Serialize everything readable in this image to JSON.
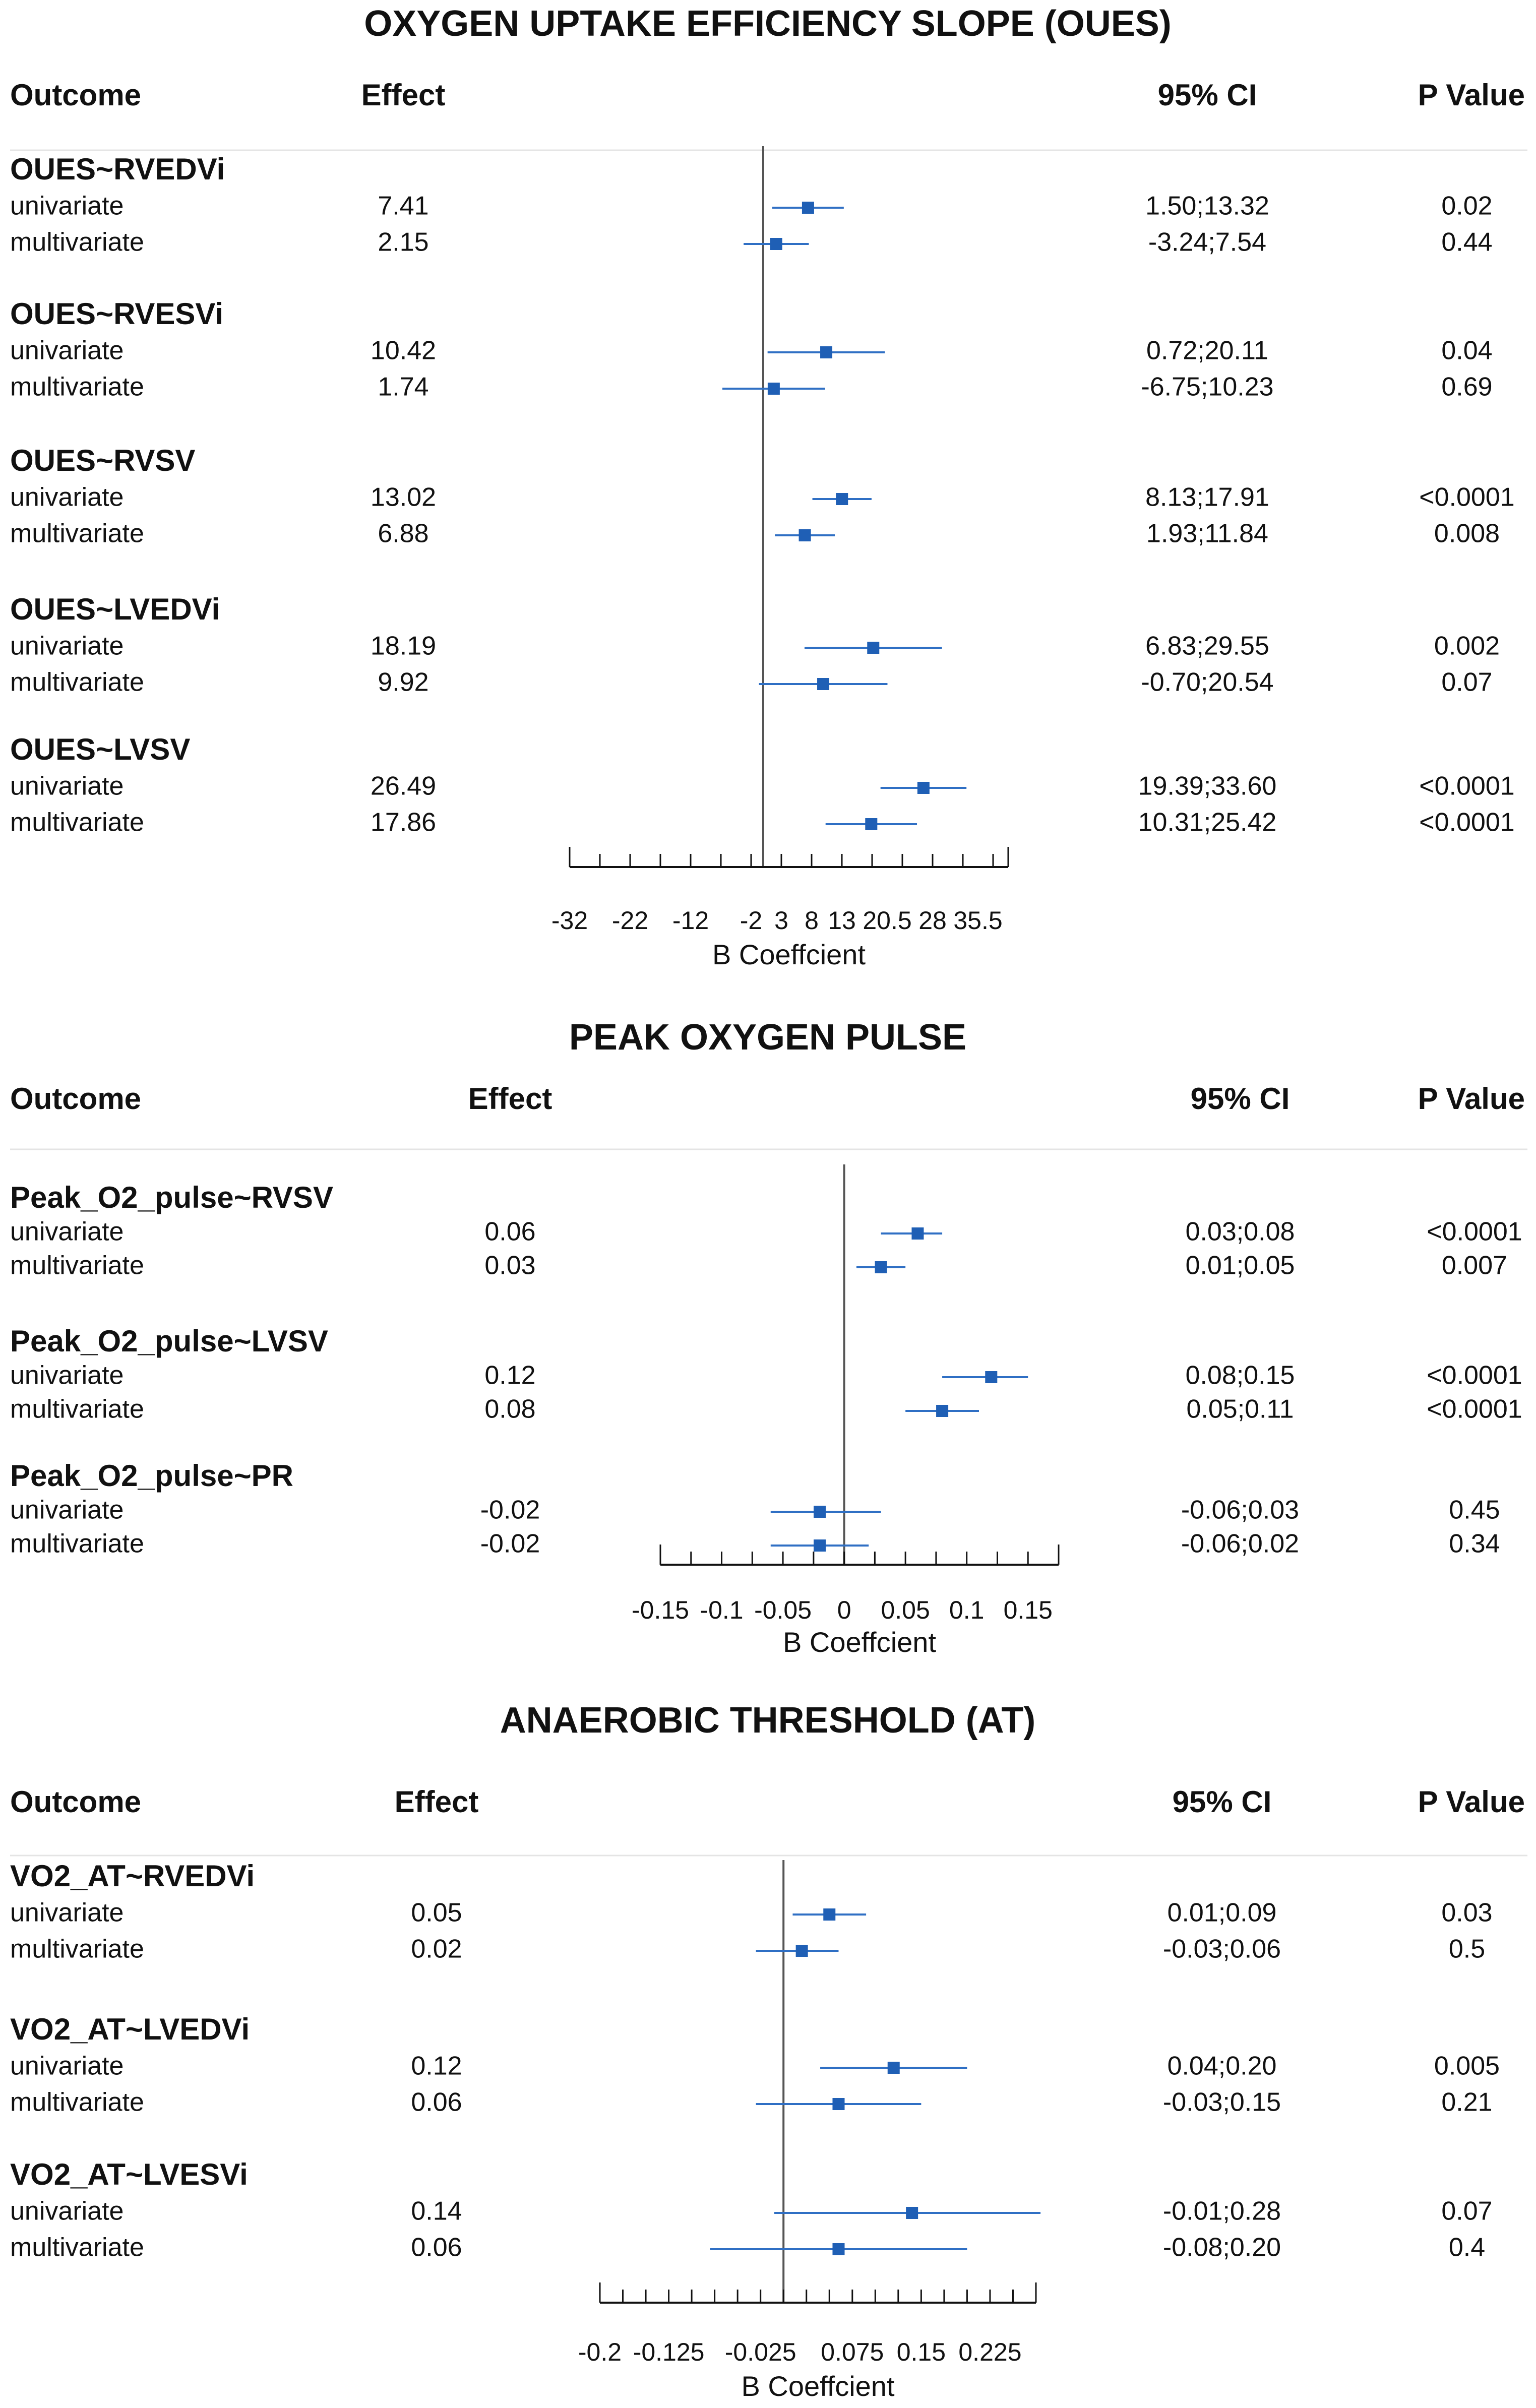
{
  "chart_data": [
    {
      "type": "forest",
      "title": "OXYGEN UPTAKE EFFICIENCY SLOPE (OUES)",
      "headers": {
        "outcome": "Outcome",
        "effect": "Effect",
        "ci": "95% CI",
        "p": "P Value"
      },
      "xlabel": "B Coeffcient",
      "xlim": [
        -32,
        40.5
      ],
      "reference_line": 0,
      "ticks": [
        -32,
        -27,
        -22,
        -17,
        -12,
        -7,
        -2,
        3,
        8,
        13,
        18,
        23,
        28,
        33,
        38,
        40.5
      ],
      "tick_labels": [
        "-32",
        "-22",
        "-12",
        "-2",
        "3",
        "8",
        "13",
        "20.5",
        "28",
        "35.5"
      ],
      "groups": [
        {
          "name": "OUES~RVEDVi",
          "rows": [
            {
              "label": "univariate",
              "effect": "7.41",
              "ci": "1.50;13.32",
              "p": "0.02",
              "est": 7.41,
              "lo": 1.5,
              "hi": 13.32
            },
            {
              "label": "multivariate",
              "effect": "2.15",
              "ci": "-3.24;7.54",
              "p": "0.44",
              "est": 2.15,
              "lo": -3.24,
              "hi": 7.54
            }
          ]
        },
        {
          "name": "OUES~RVESVi",
          "rows": [
            {
              "label": "univariate",
              "effect": "10.42",
              "ci": "0.72;20.11",
              "p": "0.04",
              "est": 10.42,
              "lo": 0.72,
              "hi": 20.11
            },
            {
              "label": "multivariate",
              "effect": "1.74",
              "ci": "-6.75;10.23",
              "p": "0.69",
              "est": 1.74,
              "lo": -6.75,
              "hi": 10.23
            }
          ]
        },
        {
          "name": "OUES~RVSV",
          "rows": [
            {
              "label": "univariate",
              "effect": "13.02",
              "ci": "8.13;17.91",
              "p": "<0.0001",
              "est": 13.02,
              "lo": 8.13,
              "hi": 17.91
            },
            {
              "label": "multivariate",
              "effect": "6.88",
              "ci": "1.93;11.84",
              "p": "0.008",
              "est": 6.88,
              "lo": 1.93,
              "hi": 11.84
            }
          ]
        },
        {
          "name": "OUES~LVEDVi",
          "rows": [
            {
              "label": "univariate",
              "effect": "18.19",
              "ci": "6.83;29.55",
              "p": "0.002",
              "est": 18.19,
              "lo": 6.83,
              "hi": 29.55
            },
            {
              "label": "multivariate",
              "effect": "9.92",
              "ci": "-0.70;20.54",
              "p": "0.07",
              "est": 9.92,
              "lo": -0.7,
              "hi": 20.54
            }
          ]
        },
        {
          "name": "OUES~LVSV",
          "rows": [
            {
              "label": "univariate",
              "effect": "26.49",
              "ci": "19.39;33.60",
              "p": "<0.0001",
              "est": 26.49,
              "lo": 19.39,
              "hi": 33.6
            },
            {
              "label": "multivariate",
              "effect": "17.86",
              "ci": "10.31;25.42",
              "p": "<0.0001",
              "est": 17.86,
              "lo": 10.31,
              "hi": 25.42
            }
          ]
        }
      ]
    },
    {
      "type": "forest",
      "title": "PEAK OXYGEN PULSE",
      "headers": {
        "outcome": "Outcome",
        "effect": "Effect",
        "ci": "95% CI",
        "p": "P Value"
      },
      "xlabel": "B Coeffcient",
      "xlim": [
        -0.15,
        0.175
      ],
      "reference_line": 0,
      "ticks": [
        -0.15,
        -0.125,
        -0.1,
        -0.075,
        -0.05,
        -0.025,
        0,
        0.025,
        0.05,
        0.075,
        0.1,
        0.125,
        0.15,
        0.175
      ],
      "tick_labels": [
        "-0.15",
        "-0.1",
        "-0.05",
        "0",
        "0.05",
        "0.1",
        "0.15"
      ],
      "groups": [
        {
          "name": "Peak_O2_pulse~RVSV",
          "rows": [
            {
              "label": "univariate",
              "effect": "0.06",
              "ci": "0.03;0.08",
              "p": "<0.0001",
              "est": 0.06,
              "lo": 0.03,
              "hi": 0.08
            },
            {
              "label": "multivariate",
              "effect": "0.03",
              "ci": "0.01;0.05",
              "p": "0.007",
              "est": 0.03,
              "lo": 0.01,
              "hi": 0.05
            }
          ]
        },
        {
          "name": "Peak_O2_pulse~LVSV",
          "rows": [
            {
              "label": "univariate",
              "effect": "0.12",
              "ci": "0.08;0.15",
              "p": "<0.0001",
              "est": 0.12,
              "lo": 0.08,
              "hi": 0.15
            },
            {
              "label": "multivariate",
              "effect": "0.08",
              "ci": "0.05;0.11",
              "p": "<0.0001",
              "est": 0.08,
              "lo": 0.05,
              "hi": 0.11
            }
          ]
        },
        {
          "name": "Peak_O2_pulse~PR",
          "rows": [
            {
              "label": "univariate",
              "effect": "-0.02",
              "ci": "-0.06;0.03",
              "p": "0.45",
              "est": -0.02,
              "lo": -0.06,
              "hi": 0.03
            },
            {
              "label": "multivariate",
              "effect": "-0.02",
              "ci": "-0.06;0.02",
              "p": "0.34",
              "est": -0.02,
              "lo": -0.06,
              "hi": 0.02
            }
          ]
        }
      ]
    },
    {
      "type": "forest",
      "title": "ANAEROBIC THRESHOLD (AT)",
      "headers": {
        "outcome": "Outcome",
        "effect": "Effect",
        "ci": "95% CI",
        "p": "P Value"
      },
      "xlabel": "B Coeffcient",
      "xlim": [
        -0.2,
        0.275
      ],
      "reference_line": 0,
      "ticks": [
        -0.2,
        -0.175,
        -0.15,
        -0.125,
        -0.1,
        -0.075,
        -0.05,
        -0.025,
        0,
        0.025,
        0.05,
        0.075,
        0.1,
        0.125,
        0.15,
        0.175,
        0.2,
        0.225,
        0.25,
        0.275
      ],
      "tick_labels": [
        "-0.2",
        "-0.125",
        "-0.025",
        "0.075",
        "0.15",
        "0.225"
      ],
      "groups": [
        {
          "name": "VO2_AT~RVEDVi",
          "rows": [
            {
              "label": "univariate",
              "effect": "0.05",
              "ci": "0.01;0.09",
              "p": "0.03",
              "est": 0.05,
              "lo": 0.01,
              "hi": 0.09
            },
            {
              "label": "multivariate",
              "effect": "0.02",
              "ci": "-0.03;0.06",
              "p": "0.5",
              "est": 0.02,
              "lo": -0.03,
              "hi": 0.06
            }
          ]
        },
        {
          "name": "VO2_AT~LVEDVi",
          "rows": [
            {
              "label": "univariate",
              "effect": "0.12",
              "ci": "0.04;0.20",
              "p": "0.005",
              "est": 0.12,
              "lo": 0.04,
              "hi": 0.2
            },
            {
              "label": "multivariate",
              "effect": "0.06",
              "ci": "-0.03;0.15",
              "p": "0.21",
              "est": 0.06,
              "lo": -0.03,
              "hi": 0.15
            }
          ]
        },
        {
          "name": "VO2_AT~LVESVi",
          "rows": [
            {
              "label": "univariate",
              "effect": "0.14",
              "ci": "-0.01;0.28",
              "p": "0.07",
              "est": 0.14,
              "lo": -0.01,
              "hi": 0.28
            },
            {
              "label": "multivariate",
              "effect": "0.06",
              "ci": "-0.08;0.20",
              "p": "0.4",
              "est": 0.06,
              "lo": -0.08,
              "hi": 0.2
            }
          ]
        }
      ]
    }
  ],
  "colors": {
    "marker": "#1f5fb5",
    "ci_line": "#2f6fc4",
    "reference_line": "#555555",
    "axis": "#111111",
    "text": "#111111",
    "header_rule": "#e4e4e4"
  }
}
